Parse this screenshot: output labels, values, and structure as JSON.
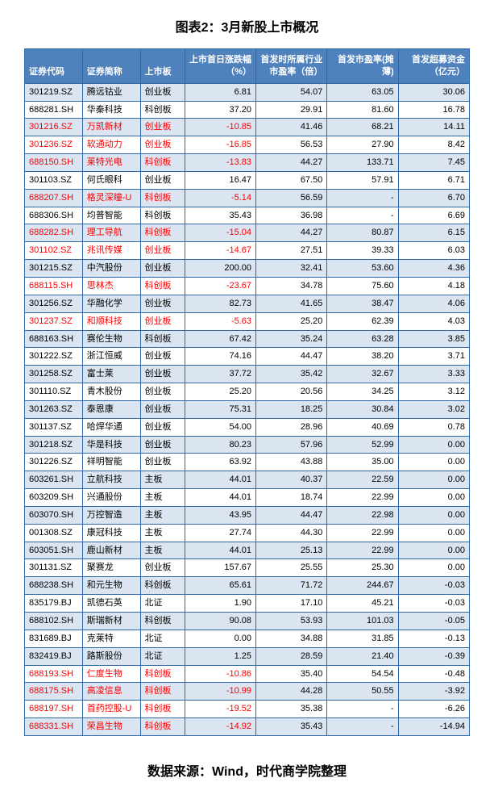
{
  "title": "图表2：3月新股上市概况",
  "source": "数据来源：Wind，时代商学院整理",
  "table": {
    "columns": [
      {
        "key": "code",
        "label": "证券代码",
        "class": "col-code"
      },
      {
        "key": "name",
        "label": "证券简称",
        "class": "col-name"
      },
      {
        "key": "board",
        "label": "上市板",
        "class": "col-board"
      },
      {
        "key": "chg",
        "label": "上市首日涨跌幅（%）",
        "class": "col-num"
      },
      {
        "key": "pe_ind",
        "label": "首发时所属行业市盈率（倍）",
        "class": "col-num"
      },
      {
        "key": "pe",
        "label": "首发市盈率(摊薄)",
        "class": "col-num"
      },
      {
        "key": "over",
        "label": "首发超募资金（亿元）",
        "class": "col-num"
      }
    ],
    "rows": [
      {
        "code": "301219.SZ",
        "name": "腾远钴业",
        "board": "创业板",
        "chg": "6.81",
        "pe_ind": "54.07",
        "pe": "63.05",
        "over": "30.06",
        "red": false
      },
      {
        "code": "688281.SH",
        "name": "华秦科技",
        "board": "科创板",
        "chg": "37.20",
        "pe_ind": "29.91",
        "pe": "81.60",
        "over": "16.78",
        "red": false
      },
      {
        "code": "301216.SZ",
        "name": "万凯新材",
        "board": "创业板",
        "chg": "-10.85",
        "pe_ind": "41.46",
        "pe": "68.21",
        "over": "14.11",
        "red": true
      },
      {
        "code": "301236.SZ",
        "name": "软通动力",
        "board": "创业板",
        "chg": "-16.85",
        "pe_ind": "56.53",
        "pe": "27.90",
        "over": "8.42",
        "red": true
      },
      {
        "code": "688150.SH",
        "name": "莱特光电",
        "board": "科创板",
        "chg": "-13.83",
        "pe_ind": "44.27",
        "pe": "133.71",
        "over": "7.45",
        "red": true
      },
      {
        "code": "301103.SZ",
        "name": "何氏眼科",
        "board": "创业板",
        "chg": "16.47",
        "pe_ind": "67.50",
        "pe": "57.91",
        "over": "6.71",
        "red": false
      },
      {
        "code": "688207.SH",
        "name": "格灵深瞳-U",
        "board": "科创板",
        "chg": "-5.14",
        "pe_ind": "56.59",
        "pe": "-",
        "over": "6.70",
        "red": true
      },
      {
        "code": "688306.SH",
        "name": "均普智能",
        "board": "科创板",
        "chg": "35.43",
        "pe_ind": "36.98",
        "pe": "-",
        "over": "6.69",
        "red": false
      },
      {
        "code": "688282.SH",
        "name": "理工导航",
        "board": "科创板",
        "chg": "-15.04",
        "pe_ind": "44.27",
        "pe": "80.87",
        "over": "6.15",
        "red": true
      },
      {
        "code": "301102.SZ",
        "name": "兆讯传媒",
        "board": "创业板",
        "chg": "-14.67",
        "pe_ind": "27.51",
        "pe": "39.33",
        "over": "6.03",
        "red": true
      },
      {
        "code": "301215.SZ",
        "name": "中汽股份",
        "board": "创业板",
        "chg": "200.00",
        "pe_ind": "32.41",
        "pe": "53.60",
        "over": "4.36",
        "red": false
      },
      {
        "code": "688115.SH",
        "name": "思林杰",
        "board": "科创板",
        "chg": "-23.67",
        "pe_ind": "34.78",
        "pe": "75.60",
        "over": "4.18",
        "red": true
      },
      {
        "code": "301256.SZ",
        "name": "华融化学",
        "board": "创业板",
        "chg": "82.73",
        "pe_ind": "41.65",
        "pe": "38.47",
        "over": "4.06",
        "red": false
      },
      {
        "code": "301237.SZ",
        "name": "和顺科技",
        "board": "创业板",
        "chg": "-5.63",
        "pe_ind": "25.20",
        "pe": "62.39",
        "over": "4.03",
        "red": true
      },
      {
        "code": "688163.SH",
        "name": "赛伦生物",
        "board": "科创板",
        "chg": "67.42",
        "pe_ind": "35.24",
        "pe": "63.28",
        "over": "3.85",
        "red": false
      },
      {
        "code": "301222.SZ",
        "name": "浙江恒威",
        "board": "创业板",
        "chg": "74.16",
        "pe_ind": "44.47",
        "pe": "38.20",
        "over": "3.71",
        "red": false
      },
      {
        "code": "301258.SZ",
        "name": "富士莱",
        "board": "创业板",
        "chg": "37.72",
        "pe_ind": "35.42",
        "pe": "32.67",
        "over": "3.33",
        "red": false
      },
      {
        "code": "301110.SZ",
        "name": "青木股份",
        "board": "创业板",
        "chg": "25.20",
        "pe_ind": "20.56",
        "pe": "34.25",
        "over": "3.12",
        "red": false
      },
      {
        "code": "301263.SZ",
        "name": "泰恩康",
        "board": "创业板",
        "chg": "75.31",
        "pe_ind": "18.25",
        "pe": "30.84",
        "over": "3.02",
        "red": false
      },
      {
        "code": "301137.SZ",
        "name": "哈焊华通",
        "board": "创业板",
        "chg": "54.00",
        "pe_ind": "28.96",
        "pe": "40.69",
        "over": "0.78",
        "red": false
      },
      {
        "code": "301218.SZ",
        "name": "华是科技",
        "board": "创业板",
        "chg": "80.23",
        "pe_ind": "57.96",
        "pe": "52.99",
        "over": "0.00",
        "red": false
      },
      {
        "code": "301226.SZ",
        "name": "祥明智能",
        "board": "创业板",
        "chg": "63.92",
        "pe_ind": "43.88",
        "pe": "35.00",
        "over": "0.00",
        "red": false
      },
      {
        "code": "603261.SH",
        "name": "立航科技",
        "board": "主板",
        "chg": "44.01",
        "pe_ind": "40.37",
        "pe": "22.59",
        "over": "0.00",
        "red": false
      },
      {
        "code": "603209.SH",
        "name": "兴通股份",
        "board": "主板",
        "chg": "44.01",
        "pe_ind": "18.74",
        "pe": "22.99",
        "over": "0.00",
        "red": false
      },
      {
        "code": "603070.SH",
        "name": "万控智造",
        "board": "主板",
        "chg": "43.95",
        "pe_ind": "44.47",
        "pe": "22.98",
        "over": "0.00",
        "red": false
      },
      {
        "code": "001308.SZ",
        "name": "康冠科技",
        "board": "主板",
        "chg": "27.74",
        "pe_ind": "44.30",
        "pe": "22.99",
        "over": "0.00",
        "red": false
      },
      {
        "code": "603051.SH",
        "name": "鹿山新材",
        "board": "主板",
        "chg": "44.01",
        "pe_ind": "25.13",
        "pe": "22.99",
        "over": "0.00",
        "red": false
      },
      {
        "code": "301131.SZ",
        "name": "聚赛龙",
        "board": "创业板",
        "chg": "157.67",
        "pe_ind": "25.55",
        "pe": "25.30",
        "over": "0.00",
        "red": false
      },
      {
        "code": "688238.SH",
        "name": "和元生物",
        "board": "科创板",
        "chg": "65.61",
        "pe_ind": "71.72",
        "pe": "244.67",
        "over": "-0.03",
        "red": false
      },
      {
        "code": "835179.BJ",
        "name": "凯德石英",
        "board": "北证",
        "chg": "1.90",
        "pe_ind": "17.10",
        "pe": "45.21",
        "over": "-0.03",
        "red": false
      },
      {
        "code": "688102.SH",
        "name": "斯瑞新材",
        "board": "科创板",
        "chg": "90.08",
        "pe_ind": "53.93",
        "pe": "101.03",
        "over": "-0.05",
        "red": false
      },
      {
        "code": "831689.BJ",
        "name": "克莱特",
        "board": "北证",
        "chg": "0.00",
        "pe_ind": "34.88",
        "pe": "31.85",
        "over": "-0.13",
        "red": false
      },
      {
        "code": "832419.BJ",
        "name": "路斯股份",
        "board": "北证",
        "chg": "1.25",
        "pe_ind": "28.59",
        "pe": "21.40",
        "over": "-0.39",
        "red": false
      },
      {
        "code": "688193.SH",
        "name": "仁度生物",
        "board": "科创板",
        "chg": "-10.86",
        "pe_ind": "35.40",
        "pe": "54.54",
        "over": "-0.48",
        "red": true
      },
      {
        "code": "688175.SH",
        "name": "高凌信息",
        "board": "科创板",
        "chg": "-10.99",
        "pe_ind": "44.28",
        "pe": "50.55",
        "over": "-3.92",
        "red": true
      },
      {
        "code": "688197.SH",
        "name": "首药控股-U",
        "board": "科创板",
        "chg": "-19.52",
        "pe_ind": "35.38",
        "pe": "-",
        "over": "-6.26",
        "red": true
      },
      {
        "code": "688331.SH",
        "name": "荣昌生物",
        "board": "科创板",
        "chg": "-14.92",
        "pe_ind": "35.43",
        "pe": "-",
        "over": "-14.94",
        "red": true
      }
    ]
  }
}
